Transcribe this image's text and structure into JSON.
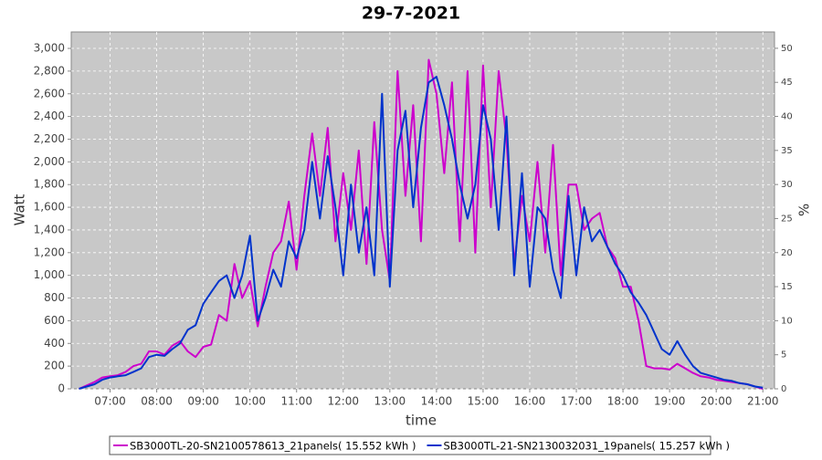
{
  "chart_data": {
    "type": "line",
    "title": "29-7-2021",
    "x_label": "time",
    "y_label": "Watt",
    "y2_label": "%",
    "x": [
      "06:20",
      "06:30",
      "06:40",
      "06:50",
      "07:00",
      "07:10",
      "07:20",
      "07:30",
      "07:40",
      "07:50",
      "08:00",
      "08:10",
      "08:20",
      "08:30",
      "08:40",
      "08:50",
      "09:00",
      "09:10",
      "09:20",
      "09:30",
      "09:40",
      "09:50",
      "10:00",
      "10:10",
      "10:20",
      "10:30",
      "10:40",
      "10:50",
      "11:00",
      "11:10",
      "11:20",
      "11:30",
      "11:40",
      "11:50",
      "12:00",
      "12:10",
      "12:20",
      "12:30",
      "12:40",
      "12:50",
      "13:00",
      "13:10",
      "13:20",
      "13:30",
      "13:40",
      "13:50",
      "14:00",
      "14:10",
      "14:20",
      "14:30",
      "14:40",
      "14:50",
      "15:00",
      "15:10",
      "15:20",
      "15:30",
      "15:40",
      "15:50",
      "16:00",
      "16:10",
      "16:20",
      "16:30",
      "16:40",
      "16:50",
      "17:00",
      "17:10",
      "17:20",
      "17:30",
      "17:40",
      "17:50",
      "18:00",
      "18:10",
      "18:20",
      "18:30",
      "18:40",
      "18:50",
      "19:00",
      "19:10",
      "19:20",
      "19:30",
      "19:40",
      "19:50",
      "20:00",
      "20:10",
      "20:20",
      "20:30",
      "20:40",
      "20:50",
      "21:00"
    ],
    "series": [
      {
        "name": "SB3000TL-20-SN2100578613_21panels( 15.552 kWh )",
        "color": "#cc00cc",
        "values": [
          0,
          30,
          60,
          100,
          110,
          120,
          150,
          200,
          220,
          330,
          330,
          300,
          380,
          420,
          330,
          280,
          370,
          390,
          650,
          600,
          1100,
          800,
          950,
          550,
          900,
          1200,
          1300,
          1650,
          1050,
          1700,
          2250,
          1700,
          2300,
          1300,
          1900,
          1400,
          2100,
          1100,
          2350,
          1400,
          950,
          2800,
          1700,
          2500,
          1300,
          2900,
          2600,
          1900,
          2700,
          1300,
          2800,
          1200,
          2850,
          1600,
          2800,
          2200,
          1100,
          1700,
          1300,
          2000,
          1200,
          2150,
          1000,
          1800,
          1800,
          1400,
          1500,
          1550,
          1250,
          1150,
          900,
          900,
          600,
          200,
          180,
          180,
          170,
          220,
          180,
          140,
          110,
          100,
          80,
          70,
          60,
          50,
          40,
          20,
          0
        ]
      },
      {
        "name": "SB3000TL-21-SN2130032031_19panels( 15.257 kWh )",
        "color": "#0033cc",
        "values": [
          0,
          20,
          40,
          80,
          100,
          110,
          120,
          150,
          180,
          280,
          300,
          290,
          350,
          400,
          520,
          560,
          750,
          850,
          950,
          1000,
          800,
          1000,
          1350,
          600,
          800,
          1050,
          900,
          1300,
          1150,
          1400,
          2000,
          1500,
          2050,
          1600,
          1000,
          1800,
          1200,
          1600,
          1000,
          2600,
          900,
          2100,
          2450,
          1600,
          2300,
          2700,
          2750,
          2500,
          2200,
          1800,
          1500,
          1800,
          2500,
          2200,
          1400,
          2400,
          1000,
          1900,
          900,
          1600,
          1500,
          1050,
          800,
          1700,
          1000,
          1600,
          1300,
          1400,
          1250,
          1100,
          1000,
          850,
          760,
          650,
          500,
          350,
          300,
          420,
          300,
          200,
          140,
          120,
          100,
          80,
          70,
          50,
          40,
          20,
          10
        ]
      }
    ],
    "xlim": [
      "06:10",
      "21:15"
    ],
    "xticks": [
      "07:00",
      "08:00",
      "09:00",
      "10:00",
      "11:00",
      "12:00",
      "13:00",
      "14:00",
      "15:00",
      "16:00",
      "17:00",
      "18:00",
      "19:00",
      "20:00",
      "21:00"
    ],
    "ylim": [
      0,
      3145
    ],
    "yticks": [
      0,
      200,
      400,
      600,
      800,
      {
        "value": 1000,
        "label": "1,000"
      },
      {
        "value": 1200,
        "label": "1,200"
      },
      {
        "value": 1400,
        "label": "1,400"
      },
      {
        "value": 1600,
        "label": "1,600"
      },
      {
        "value": 1800,
        "label": "1,800"
      },
      {
        "value": 2000,
        "label": "2,000"
      },
      {
        "value": 2200,
        "label": "2,200"
      },
      {
        "value": 2400,
        "label": "2,400"
      },
      {
        "value": 2600,
        "label": "2,600"
      },
      {
        "value": 2800,
        "label": "2,800"
      },
      {
        "value": 3000,
        "label": "3,000"
      }
    ],
    "y2lim": [
      0,
      52.4
    ],
    "y2ticks": [
      0,
      5,
      10,
      15,
      20,
      25,
      30,
      35,
      40,
      45,
      50
    ],
    "grid": true,
    "legend": "bottom"
  }
}
